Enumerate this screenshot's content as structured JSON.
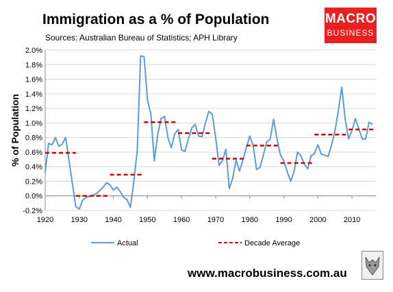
{
  "header": {
    "title": "Immigration as a % of Population",
    "subtitle": "Sources: Australian Bureau of Statistics; APH Library"
  },
  "logo": {
    "line1": "MACRO",
    "line2": "BUSINESS",
    "color": "#e8201f"
  },
  "footer": {
    "website": "www.macrobusiness.com.au"
  },
  "chart_data": {
    "type": "line",
    "ylabel": "% of Population",
    "xlabel": "",
    "xlim": [
      1920,
      2017
    ],
    "ylim": [
      -0.2,
      2.0
    ],
    "grid": "horizontal",
    "legend_position": "bottom",
    "x_ticks": [
      1920,
      1930,
      1940,
      1950,
      1960,
      1970,
      1980,
      1990,
      2000,
      2010
    ],
    "x_tick_labels": [
      "1920",
      "1930",
      "1940",
      "1950",
      "1960",
      "1970",
      "1980",
      "1990",
      "2000",
      "2010"
    ],
    "y_ticks": [
      -0.2,
      0.0,
      0.2,
      0.4,
      0.6,
      0.8,
      1.0,
      1.2,
      1.4,
      1.6,
      1.8,
      2.0
    ],
    "y_tick_labels": [
      "-0.2%",
      "0.0%",
      "0.2%",
      "0.4%",
      "0.6%",
      "0.8%",
      "1.0%",
      "1.2%",
      "1.4%",
      "1.6%",
      "1.8%",
      "2.0%"
    ],
    "series": [
      {
        "name": "Actual",
        "color": "#5b9bd5",
        "style": "solid",
        "x": [
          1920,
          1921,
          1922,
          1923,
          1924,
          1925,
          1926,
          1927,
          1928,
          1929,
          1930,
          1931,
          1932,
          1933,
          1934,
          1935,
          1936,
          1937,
          1938,
          1939,
          1940,
          1941,
          1942,
          1943,
          1944,
          1945,
          1946,
          1947,
          1948,
          1949,
          1950,
          1951,
          1952,
          1953,
          1954,
          1955,
          1956,
          1957,
          1958,
          1959,
          1960,
          1961,
          1962,
          1963,
          1964,
          1965,
          1966,
          1967,
          1968,
          1969,
          1970,
          1971,
          1972,
          1973,
          1974,
          1975,
          1976,
          1977,
          1978,
          1979,
          1980,
          1981,
          1982,
          1983,
          1984,
          1985,
          1986,
          1987,
          1988,
          1989,
          1990,
          1991,
          1992,
          1993,
          1994,
          1995,
          1996,
          1997,
          1998,
          1999,
          2000,
          2001,
          2002,
          2003,
          2004,
          2005,
          2006,
          2007,
          2008,
          2009,
          2010,
          2011,
          2012,
          2013,
          2014,
          2015,
          2016
        ],
        "y": [
          0.32,
          0.72,
          0.7,
          0.8,
          0.68,
          0.71,
          0.8,
          0.48,
          0.16,
          -0.15,
          -0.18,
          -0.06,
          -0.02,
          -0.01,
          0.01,
          0.03,
          0.07,
          0.12,
          0.18,
          0.15,
          0.08,
          0.12,
          0.06,
          -0.02,
          -0.05,
          -0.16,
          0.2,
          0.62,
          1.92,
          1.91,
          1.32,
          1.12,
          0.48,
          0.84,
          1.06,
          1.09,
          0.8,
          0.66,
          0.85,
          0.91,
          0.63,
          0.61,
          0.78,
          0.93,
          0.98,
          0.82,
          0.81,
          1.0,
          1.16,
          1.12,
          0.8,
          0.42,
          0.48,
          0.64,
          0.1,
          0.24,
          0.49,
          0.34,
          0.49,
          0.66,
          0.82,
          0.69,
          0.36,
          0.39,
          0.56,
          0.74,
          0.78,
          1.05,
          0.78,
          0.56,
          0.48,
          0.33,
          0.2,
          0.33,
          0.6,
          0.55,
          0.44,
          0.37,
          0.55,
          0.58,
          0.7,
          0.57,
          0.56,
          0.54,
          0.7,
          0.89,
          1.17,
          1.49,
          1.05,
          0.78,
          0.9,
          1.06,
          0.92,
          0.78,
          0.78,
          1.01,
          0.98
        ]
      },
      {
        "name": "Decade Average",
        "color": "#cc0000",
        "style": "dashed",
        "segments": [
          {
            "x": [
              1920,
              1929
            ],
            "y": 0.59
          },
          {
            "x": [
              1929,
              1939
            ],
            "y": 0.0
          },
          {
            "x": [
              1939,
              1949
            ],
            "y": 0.29
          },
          {
            "x": [
              1949,
              1959
            ],
            "y": 1.01
          },
          {
            "x": [
              1959,
              1969
            ],
            "y": 0.86
          },
          {
            "x": [
              1969,
              1979
            ],
            "y": 0.51
          },
          {
            "x": [
              1979,
              1989
            ],
            "y": 0.69
          },
          {
            "x": [
              1989,
              1999
            ],
            "y": 0.45
          },
          {
            "x": [
              1999,
              2009
            ],
            "y": 0.84
          },
          {
            "x": [
              2009,
              2017
            ],
            "y": 0.91
          }
        ]
      }
    ]
  }
}
